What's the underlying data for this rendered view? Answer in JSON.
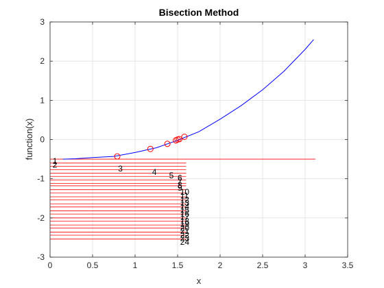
{
  "chart_data": {
    "type": "line",
    "title": "Bisection Method",
    "xlabel": "x",
    "ylabel": "function(x)",
    "xlim": [
      0,
      3.5
    ],
    "ylim": [
      -3,
      3
    ],
    "xticks": [
      "0",
      "0.5",
      "1",
      "1.5",
      "2",
      "2.5",
      "3",
      "3.5"
    ],
    "yticks": [
      "-3",
      "-2",
      "-1",
      "0",
      "1",
      "2",
      "3"
    ],
    "grid": true,
    "colors": {
      "curve": "#0000ff",
      "marks": "#ff0000",
      "grid": "#e0e0e0",
      "axes": "#262626"
    },
    "series": [
      {
        "type": "line",
        "x": [
          0.15,
          0.3,
          0.5,
          0.75,
          1.0,
          1.25,
          1.5,
          1.75,
          2.0,
          2.25,
          2.5,
          2.75,
          3.0,
          3.1
        ],
        "y": [
          -0.5,
          -0.49,
          -0.46,
          -0.43,
          -0.33,
          -0.21,
          -0.02,
          0.2,
          0.52,
          0.87,
          1.27,
          1.74,
          2.3,
          2.55
        ]
      },
      {
        "type": "scatter",
        "marker": "circle",
        "x": [
          0.79,
          1.18,
          1.38,
          1.48,
          1.5,
          1.52,
          1.58
        ],
        "y": [
          -0.43,
          -0.24,
          -0.11,
          -0.02,
          0.0,
          0.01,
          0.07
        ]
      }
    ],
    "iterations": [
      {
        "label": "1",
        "x_end": 3.12,
        "y": -0.5,
        "label_x": 0.03,
        "label_y": -0.53
      },
      {
        "label": "2",
        "x_end": 1.6,
        "y": -0.6,
        "label_x": 0.03,
        "label_y": -0.63
      },
      {
        "label": "3",
        "x_end": 1.6,
        "y": -0.68,
        "label_x": 0.8,
        "label_y": -0.73
      },
      {
        "label": "4",
        "x_end": 1.6,
        "y": -0.77,
        "label_x": 1.2,
        "label_y": -0.81
      },
      {
        "label": "5",
        "x_end": 1.6,
        "y": -0.86,
        "label_x": 1.4,
        "label_y": -0.9
      },
      {
        "label": "6",
        "x_end": 1.6,
        "y": -0.94,
        "label_x": 1.5,
        "label_y": -0.96
      },
      {
        "label": "7",
        "x_end": 1.6,
        "y": -1.03,
        "label_x": 1.5,
        "label_y": -1.06
      },
      {
        "label": "8",
        "x_end": 1.6,
        "y": -1.12,
        "label_x": 1.5,
        "label_y": -1.15
      },
      {
        "label": "9",
        "x_end": 1.6,
        "y": -1.18,
        "label_x": 1.5,
        "label_y": -1.22
      },
      {
        "label": "10",
        "x_end": 1.6,
        "y": -1.28,
        "label_x": 1.53,
        "label_y": -1.32
      },
      {
        "label": "11",
        "x_end": 1.6,
        "y": -1.36,
        "label_x": 1.53,
        "label_y": -1.42
      },
      {
        "label": "12",
        "x_end": 1.6,
        "y": -1.46,
        "label_x": 1.53,
        "label_y": -1.52
      },
      {
        "label": "13",
        "x_end": 1.6,
        "y": -1.54,
        "label_x": 1.53,
        "label_y": -1.6
      },
      {
        "label": "14",
        "x_end": 1.6,
        "y": -1.64,
        "label_x": 1.53,
        "label_y": -1.7
      },
      {
        "label": "15",
        "x_end": 1.6,
        "y": -1.72,
        "label_x": 1.53,
        "label_y": -1.78
      },
      {
        "label": "16",
        "x_end": 1.6,
        "y": -1.82,
        "label_x": 1.53,
        "label_y": -1.88
      },
      {
        "label": "17",
        "x_end": 1.6,
        "y": -1.9,
        "label_x": 1.53,
        "label_y": -1.96
      },
      {
        "label": "18",
        "x_end": 1.6,
        "y": -2.0,
        "label_x": 1.53,
        "label_y": -2.06
      },
      {
        "label": "19",
        "x_end": 1.6,
        "y": -2.08,
        "label_x": 1.53,
        "label_y": -2.14
      },
      {
        "label": "20",
        "x_end": 1.6,
        "y": -2.18,
        "label_x": 1.53,
        "label_y": -2.24
      },
      {
        "label": "21",
        "x_end": 1.6,
        "y": -2.26,
        "label_x": 1.53,
        "label_y": -2.32
      },
      {
        "label": "22",
        "x_end": 1.6,
        "y": -2.36,
        "label_x": 1.53,
        "label_y": -2.42
      },
      {
        "label": "23",
        "x_end": 1.6,
        "y": -2.44,
        "label_x": 1.53,
        "label_y": -2.5
      },
      {
        "label": "24",
        "x_end": 1.6,
        "y": -2.54,
        "label_x": 1.53,
        "label_y": -2.6
      }
    ]
  }
}
